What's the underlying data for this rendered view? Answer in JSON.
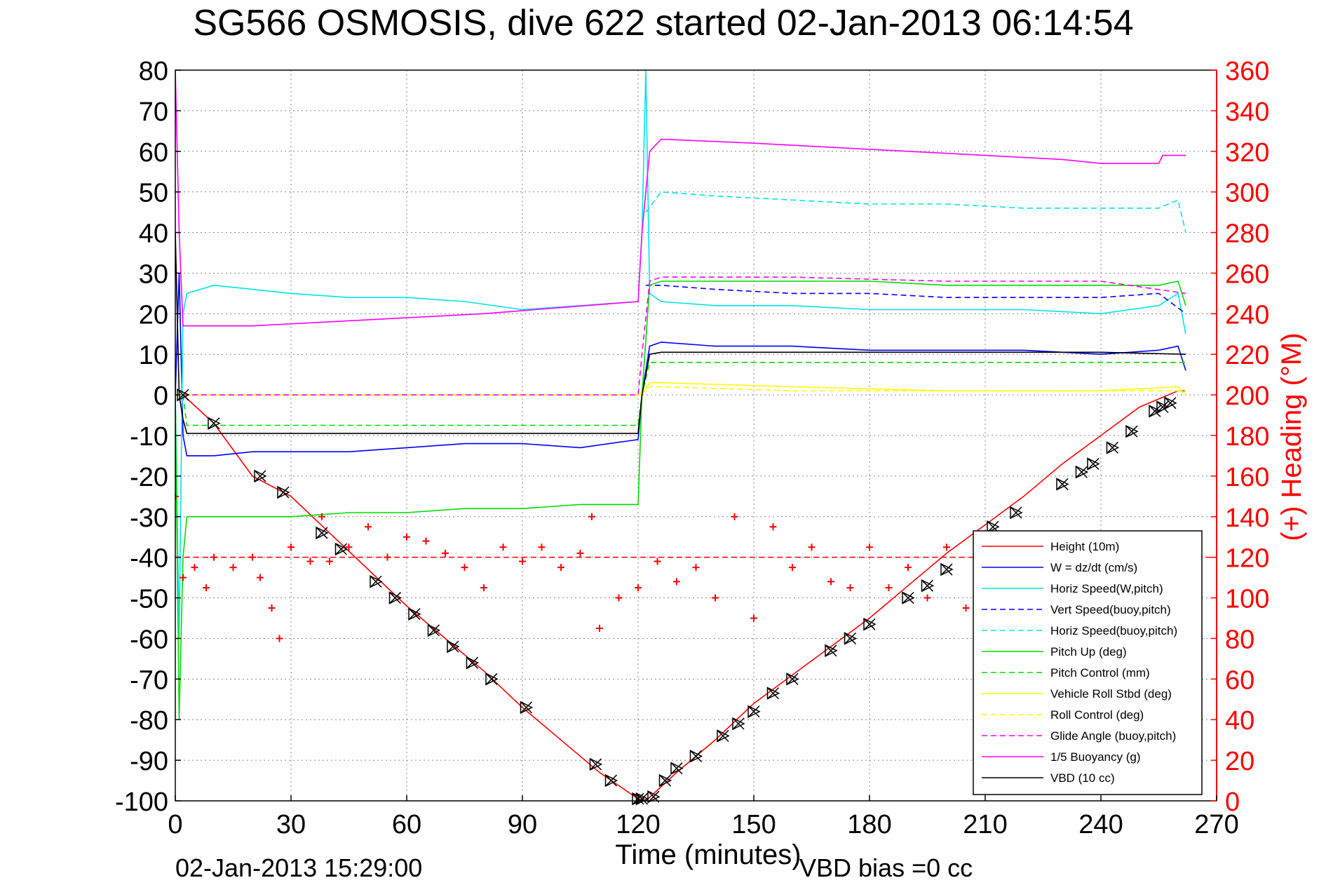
{
  "chart_data": {
    "type": "line",
    "title": "SG566 OSMOSIS, dive 622 started 02-Jan-2013 06:14:54",
    "xlabel": "Time (minutes)",
    "ylabel_right": "(+) Heading (°M)",
    "footer_left": "02-Jan-2013 15:29:00",
    "footer_right": "VBD bias =0 cc",
    "grid": true,
    "legend_position": "bottom-right",
    "xlim": [
      0,
      270
    ],
    "ylim": [
      -100,
      80
    ],
    "ylim_right": [
      0,
      360
    ],
    "xticks": [
      "0",
      "30",
      "60",
      "90",
      "120",
      "150",
      "180",
      "210",
      "240",
      "270"
    ],
    "yticks": [
      "80",
      "70",
      "60",
      "50",
      "40",
      "30",
      "20",
      "10",
      "0",
      "-10",
      "-20",
      "-30",
      "-40",
      "-50",
      "-60",
      "-70",
      "-80",
      "-90",
      "-100"
    ],
    "yticks_right": [
      "360",
      "340",
      "320",
      "300",
      "280",
      "260",
      "240",
      "220",
      "200",
      "180",
      "160",
      "140",
      "120",
      "100",
      "80",
      "60",
      "40",
      "20",
      "0"
    ],
    "right_axis_color": "#ff0000",
    "series": [
      {
        "name": "Height (10m)",
        "color": "#ff0000",
        "style": "solid",
        "x": [
          0,
          2,
          10,
          20,
          30,
          40,
          50,
          60,
          70,
          80,
          90,
          100,
          110,
          120,
          122,
          130,
          140,
          150,
          160,
          170,
          180,
          190,
          200,
          210,
          220,
          230,
          240,
          250,
          260,
          262
        ],
        "y": [
          0,
          0,
          -7,
          -20,
          -25,
          -34,
          -43,
          -52,
          -60,
          -68,
          -77,
          -85,
          -93,
          -99.5,
          -100,
          -93,
          -85,
          -76,
          -69,
          -62,
          -55,
          -47,
          -39,
          -32,
          -25,
          -17,
          -10,
          -3,
          1,
          1
        ]
      },
      {
        "name": "W = dz/dt (cm/s)",
        "color": "#0000ff",
        "style": "solid",
        "x": [
          0,
          1,
          2,
          3,
          10,
          20,
          30,
          45,
          60,
          75,
          90,
          105,
          120,
          121,
          123,
          126,
          140,
          160,
          180,
          200,
          220,
          240,
          255,
          260,
          262
        ],
        "y": [
          0,
          30,
          -10,
          -15,
          -15,
          -14,
          -14,
          -14,
          -13,
          -12,
          -12,
          -13,
          -11,
          0,
          12,
          13,
          12,
          12,
          11,
          11,
          11,
          10,
          11,
          12,
          6
        ]
      },
      {
        "name": "Horiz Speed(W,pitch)",
        "color": "#00e5e5",
        "style": "solid",
        "x": [
          0,
          1,
          2,
          3,
          10,
          20,
          30,
          45,
          60,
          75,
          90,
          105,
          120,
          121,
          122,
          123,
          126,
          140,
          160,
          180,
          200,
          220,
          240,
          255,
          260,
          262
        ],
        "y": [
          0,
          -60,
          20,
          25,
          27,
          26,
          25,
          24,
          24,
          23,
          21,
          22,
          23,
          40,
          80,
          25,
          23,
          22,
          22,
          21,
          21,
          21,
          20,
          22,
          25,
          15
        ]
      },
      {
        "name": "Vert Speed(buoy,pitch)",
        "color": "#0000ff",
        "style": "dashed",
        "x": [
          122,
          126,
          140,
          160,
          180,
          200,
          220,
          240,
          255,
          262
        ],
        "y": [
          27,
          27,
          26,
          25,
          25,
          24,
          24,
          24,
          25,
          20
        ]
      },
      {
        "name": "Horiz Speed(buoy,pitch)",
        "color": "#00e5e5",
        "style": "dashed",
        "x": [
          122,
          126,
          140,
          160,
          180,
          200,
          220,
          240,
          255,
          260,
          262
        ],
        "y": [
          45,
          50,
          49,
          48,
          47,
          47,
          46,
          46,
          46,
          48,
          40
        ]
      },
      {
        "name": "Pitch Up (deg)",
        "color": "#00dd00",
        "style": "solid",
        "x": [
          0,
          1,
          2,
          3,
          10,
          20,
          30,
          45,
          60,
          75,
          90,
          105,
          120,
          121,
          123,
          126,
          140,
          160,
          180,
          200,
          220,
          240,
          255,
          260,
          262
        ],
        "y": [
          0,
          -80,
          -40,
          -30,
          -30,
          -30,
          -30,
          -29,
          -29,
          -28,
          -28,
          -27,
          -27,
          0,
          27,
          28,
          28,
          28,
          28,
          27,
          27,
          27,
          27,
          28,
          22
        ]
      },
      {
        "name": "Pitch Control (mm)",
        "color": "#00dd00",
        "style": "dashed",
        "x": [
          2,
          3,
          10,
          20,
          40,
          60,
          80,
          100,
          120,
          121,
          123,
          126,
          160,
          200,
          240,
          262
        ],
        "y": [
          0,
          -7.5,
          -7.5,
          -7.5,
          -7.5,
          -7.5,
          -7.5,
          -7.5,
          -7.5,
          0,
          8,
          8,
          8,
          8,
          8,
          8
        ]
      },
      {
        "name": "Vehicle Roll Stbd (deg)",
        "color": "#ffff00",
        "style": "solid",
        "x": [
          0,
          2,
          10,
          20,
          40,
          60,
          80,
          100,
          120,
          121,
          123,
          126,
          160,
          200,
          240,
          260,
          262
        ],
        "y": [
          0,
          0,
          0,
          0,
          0,
          0,
          0,
          0,
          0,
          0,
          3,
          3,
          2,
          1,
          1,
          2,
          0
        ]
      },
      {
        "name": "Roll Control (deg)",
        "color": "#ffff00",
        "style": "dashed",
        "x": [
          0,
          2,
          10,
          20,
          40,
          60,
          80,
          100,
          120,
          123,
          126,
          160,
          200,
          240,
          262
        ],
        "y": [
          0,
          0,
          0,
          0,
          0,
          0,
          0,
          0,
          0,
          2,
          2,
          1,
          1,
          1,
          1
        ]
      },
      {
        "name": "Glide Angle (buoy,pitch)",
        "color": "#ff00ff",
        "style": "dashed",
        "x": [
          2,
          10,
          40,
          80,
          120,
          121,
          123,
          126,
          160,
          200,
          240,
          262
        ],
        "y": [
          0,
          0,
          0,
          0,
          0,
          10,
          28,
          29,
          29,
          28,
          28,
          25
        ]
      },
      {
        "name": "1/5 Buoyancy (g)",
        "color": "#ff00ff",
        "style": "solid",
        "x": [
          0,
          1,
          2,
          20,
          40,
          60,
          80,
          100,
          120,
          121,
          123,
          126,
          150,
          180,
          210,
          230,
          240,
          250,
          255,
          256,
          258,
          262
        ],
        "y": [
          80,
          40,
          17,
          17,
          18,
          19,
          20,
          21.5,
          23,
          40,
          60,
          63,
          62,
          60.5,
          59,
          58,
          57,
          57,
          57,
          59,
          59,
          59
        ]
      },
      {
        "name": "VBD (10 cc)",
        "color": "#000000",
        "style": "solid",
        "x": [
          0,
          1,
          2,
          3,
          10,
          40,
          80,
          120,
          121,
          123,
          126,
          160,
          200,
          240,
          262
        ],
        "y": [
          40,
          0,
          -6,
          -9.5,
          -9.5,
          -9.5,
          -9.5,
          -9.5,
          0,
          10,
          10.5,
          10.5,
          10.5,
          10.5,
          10
        ]
      }
    ],
    "heading_series": {
      "name": "(+) Heading (°M)",
      "color": "#ff0000",
      "marker": "+",
      "axis": "right",
      "x": [
        0,
        2,
        5,
        8,
        10,
        15,
        20,
        22,
        25,
        27,
        30,
        35,
        38,
        40,
        45,
        50,
        55,
        60,
        65,
        70,
        75,
        80,
        85,
        90,
        95,
        100,
        105,
        108,
        110,
        115,
        120,
        125,
        130,
        135,
        140,
        145,
        150,
        155,
        160,
        165,
        170,
        175,
        180,
        185,
        190,
        195,
        200,
        205,
        210,
        220,
        230,
        240,
        250,
        260
      ],
      "y": [
        150,
        110,
        115,
        105,
        120,
        115,
        120,
        110,
        95,
        80,
        125,
        118,
        140,
        118,
        125,
        135,
        120,
        130,
        128,
        122,
        115,
        105,
        125,
        118,
        125,
        115,
        122,
        140,
        85,
        100,
        105,
        118,
        108,
        115,
        100,
        140,
        90,
        135,
        115,
        125,
        108,
        105,
        125,
        105,
        115,
        100,
        125,
        95,
        120,
        110,
        115,
        105,
        120,
        130
      ]
    },
    "heading_dashed_level": 120,
    "markers": {
      "symbol": "triangle-x",
      "color": "#000000",
      "x": [
        2,
        10,
        22,
        28,
        38,
        43,
        52,
        57,
        62,
        67,
        72,
        77,
        82,
        91,
        109,
        113,
        120,
        121,
        124,
        127,
        130,
        135,
        142,
        146,
        150,
        155,
        160,
        170,
        175,
        180,
        190,
        195,
        200,
        212,
        218,
        230,
        235,
        238,
        243,
        248,
        254,
        256,
        258
      ],
      "y": [
        0,
        -7,
        -20,
        -24,
        -34,
        -38,
        -46,
        -50,
        -54,
        -58,
        -62,
        -66,
        -70,
        -77,
        -91,
        -95,
        -99.5,
        -99.5,
        -99,
        -95,
        -92,
        -89,
        -84,
        -81,
        -78,
        -73.5,
        -70,
        -63,
        -60,
        -56.5,
        -50,
        -47,
        -43,
        -32.5,
        -29,
        -22,
        -19,
        -17,
        -13,
        -9,
        -4,
        -3,
        -2
      ]
    }
  }
}
